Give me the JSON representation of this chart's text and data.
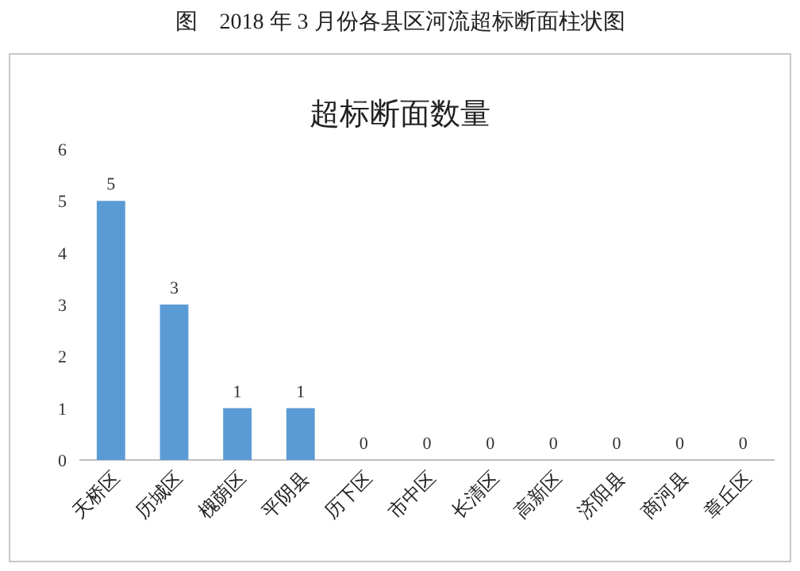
{
  "chart_data": {
    "type": "bar",
    "title": "超标断面数量",
    "annotations": [
      "图　2018 年 3 月份各县区河流超标断面柱状图"
    ],
    "categories": [
      "天桥区",
      "历城区",
      "槐荫区",
      "平阴县",
      "历下区",
      "市中区",
      "长清区",
      "高新区",
      "济阳县",
      "商河县",
      "章丘区"
    ],
    "values": [
      5,
      3,
      1,
      1,
      0,
      0,
      0,
      0,
      0,
      0,
      0
    ],
    "color": "#5b9bd5",
    "ylim": [
      0,
      6
    ],
    "yticks": [
      0,
      1,
      2,
      3,
      4,
      5,
      6
    ],
    "data_labels": true
  }
}
